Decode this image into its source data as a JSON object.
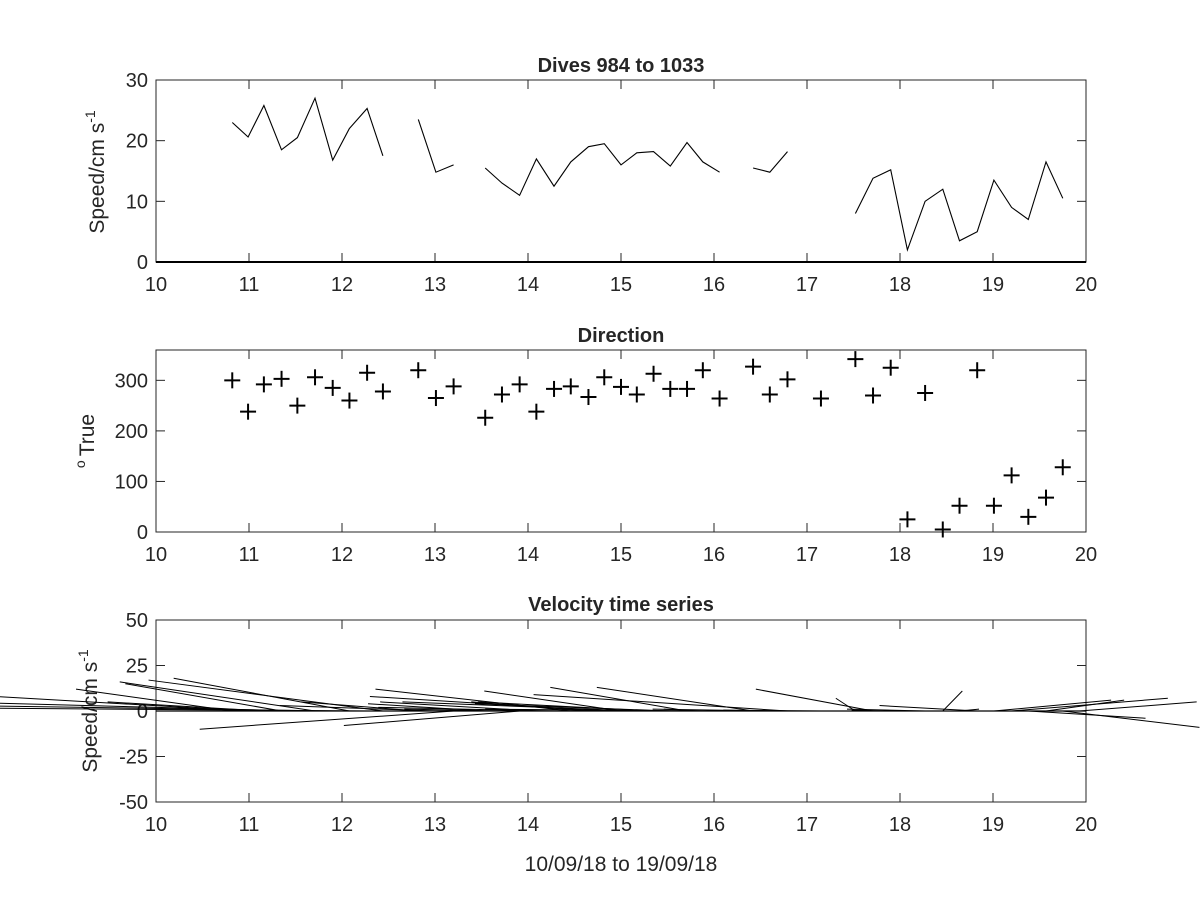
{
  "colors": {
    "background": "#ffffff",
    "axes": "#262626",
    "line": "#000000"
  },
  "chart_data": [
    {
      "type": "line",
      "title": "Dives 984 to 1033",
      "ylabel": "Speed/cm s",
      "ylabel_sup": "-1",
      "xlim": [
        10,
        20
      ],
      "ylim": [
        0,
        30
      ],
      "xticks": [
        "10",
        "11",
        "12",
        "13",
        "14",
        "15",
        "16",
        "17",
        "18",
        "19",
        "20"
      ],
      "yticks": [
        "0",
        "10",
        "20",
        "30"
      ],
      "series": [
        {
          "x": [
            10.82,
            10.99,
            11.16,
            11.35,
            11.52,
            11.71,
            11.9,
            12.08,
            12.27,
            12.44
          ],
          "y": [
            23,
            20.6,
            25.8,
            18.5,
            20.5,
            27,
            16.8,
            22,
            25.3,
            17.5
          ]
        },
        {
          "x": [
            12.82,
            13.01,
            13.2
          ],
          "y": [
            23.5,
            14.8,
            16
          ]
        },
        {
          "x": [
            13.54,
            13.72,
            13.91,
            14.09,
            14.28,
            14.46,
            14.65,
            14.82,
            15.0,
            15.17,
            15.35,
            15.53,
            15.71,
            15.88,
            16.06
          ],
          "y": [
            15.5,
            13,
            11,
            17,
            12.5,
            16.5,
            19,
            19.5,
            16,
            18,
            18.2,
            15.8,
            19.7,
            16.5,
            14.8
          ]
        },
        {
          "x": [
            16.42,
            16.6,
            16.79
          ],
          "y": [
            15.5,
            14.8,
            18.2
          ]
        },
        {
          "x": [
            17.52,
            17.71,
            17.9,
            18.08,
            18.27,
            18.46,
            18.64,
            18.83,
            19.01,
            19.2,
            19.38,
            19.57,
            19.75
          ],
          "y": [
            8,
            13.8,
            15.2,
            2,
            10,
            12,
            3.5,
            5,
            13.5,
            9,
            7,
            16.5,
            10.5
          ]
        }
      ]
    },
    {
      "type": "scatter",
      "title": "Direction",
      "ylabel": "True",
      "ylabel_sup": "o",
      "xlim": [
        10,
        20
      ],
      "ylim": [
        0,
        360
      ],
      "xticks": [
        "10",
        "11",
        "12",
        "13",
        "14",
        "15",
        "16",
        "17",
        "18",
        "19",
        "20"
      ],
      "yticks": [
        "0",
        "100",
        "200",
        "300"
      ],
      "marker": "+",
      "series": [
        {
          "x": [
            10.82,
            10.99,
            11.16,
            11.35,
            11.52,
            11.71,
            11.9,
            12.08,
            12.27,
            12.44,
            12.82,
            13.01,
            13.2,
            13.54,
            13.72,
            13.91,
            14.09,
            14.28,
            14.46,
            14.65,
            14.82,
            15.0,
            15.17,
            15.35,
            15.53,
            15.71,
            15.88,
            16.06,
            16.42,
            16.6,
            16.79,
            17.15,
            17.52,
            17.71,
            17.9,
            18.08,
            18.27,
            18.46,
            18.64,
            18.83,
            19.01,
            19.2,
            19.38,
            19.57,
            19.75
          ],
          "y": [
            300,
            238,
            292,
            303,
            250,
            306,
            285,
            260,
            315,
            278,
            320,
            265,
            288,
            226,
            272,
            292,
            238,
            283,
            288,
            267,
            306,
            287,
            272,
            313,
            283,
            283,
            320,
            264,
            327,
            272,
            302,
            264,
            342,
            270,
            325,
            25,
            275,
            5,
            52,
            320,
            52,
            112,
            30,
            68,
            128
          ]
        }
      ]
    },
    {
      "type": "quiver",
      "title": "Velocity time series",
      "ylabel": "Speed/cm s",
      "ylabel_sup": "-1",
      "xlabel": "10/09/18 to 19/09/18",
      "xlim": [
        10,
        20
      ],
      "ylim": [
        -50,
        50
      ],
      "xticks": [
        "10",
        "11",
        "12",
        "13",
        "14",
        "15",
        "16",
        "17",
        "18",
        "19",
        "20"
      ],
      "yticks": [
        "-50",
        "-25",
        "0",
        "25",
        "50"
      ],
      "vectors": [
        {
          "x": 10.82,
          "u": -8,
          "v": 12
        },
        {
          "x": 10.99,
          "u": -13,
          "v": 8
        },
        {
          "x": 11.16,
          "u": -8,
          "v": 5
        },
        {
          "x": 11.35,
          "u": -8,
          "v": 15
        },
        {
          "x": 11.52,
          "u": -18,
          "v": 5
        },
        {
          "x": 11.71,
          "u": -10,
          "v": 16
        },
        {
          "x": 11.9,
          "u": -19,
          "v": 3
        },
        {
          "x": 12.08,
          "u": -9,
          "v": 18
        },
        {
          "x": 12.27,
          "u": -25,
          "v": 2
        },
        {
          "x": 12.44,
          "u": -12,
          "v": 17
        },
        {
          "x": 12.82,
          "u": -6,
          "v": 5
        },
        {
          "x": 13.01,
          "u": -8,
          "v": 3
        },
        {
          "x": 13.2,
          "u": -13,
          "v": -10
        },
        {
          "x": 13.54,
          "u": -6,
          "v": 4
        },
        {
          "x": 13.72,
          "u": -5,
          "v": 1
        },
        {
          "x": 13.91,
          "u": -9,
          "v": -8
        },
        {
          "x": 14.09,
          "u": -8,
          "v": 5
        },
        {
          "x": 14.28,
          "u": -9,
          "v": 2
        },
        {
          "x": 14.46,
          "u": -10,
          "v": 12
        },
        {
          "x": 14.65,
          "u": -6,
          "v": 5
        },
        {
          "x": 14.82,
          "u": -12,
          "v": 8
        },
        {
          "x": 15.0,
          "u": -7,
          "v": 11
        },
        {
          "x": 15.17,
          "u": -12,
          "v": 5
        },
        {
          "x": 15.35,
          "u": -9,
          "v": 5
        },
        {
          "x": 15.53,
          "u": -10,
          "v": 4
        },
        {
          "x": 15.71,
          "u": -7,
          "v": 13
        },
        {
          "x": 15.88,
          "u": -2,
          "v": 1
        },
        {
          "x": 16.06,
          "u": -12,
          "v": 1
        },
        {
          "x": 16.42,
          "u": -8,
          "v": 13
        },
        {
          "x": 16.6,
          "u": -6,
          "v": 1
        },
        {
          "x": 16.79,
          "u": -13,
          "v": 9
        },
        {
          "x": 17.15,
          "u": -5,
          "v": 0.5
        },
        {
          "x": 17.52,
          "u": -1,
          "v": 7
        },
        {
          "x": 17.71,
          "u": -6,
          "v": 12
        },
        {
          "x": 17.9,
          "u": -2,
          "v": 0.5
        },
        {
          "x": 18.08,
          "u": -6,
          "v": 0
        },
        {
          "x": 18.27,
          "u": -4,
          "v": 1
        },
        {
          "x": 18.46,
          "u": 1,
          "v": 11
        },
        {
          "x": 18.64,
          "u": 1,
          "v": 1
        },
        {
          "x": 18.83,
          "u": -5,
          "v": 3
        },
        {
          "x": 19.01,
          "u": 6,
          "v": 6
        },
        {
          "x": 19.2,
          "u": 8,
          "v": 7
        },
        {
          "x": 19.38,
          "u": 6,
          "v": -4
        },
        {
          "x": 19.57,
          "u": 4,
          "v": 6
        },
        {
          "x": 19.75,
          "u": 7,
          "v": -9
        },
        {
          "x": 19.93,
          "u": 6,
          "v": 5
        }
      ]
    }
  ]
}
